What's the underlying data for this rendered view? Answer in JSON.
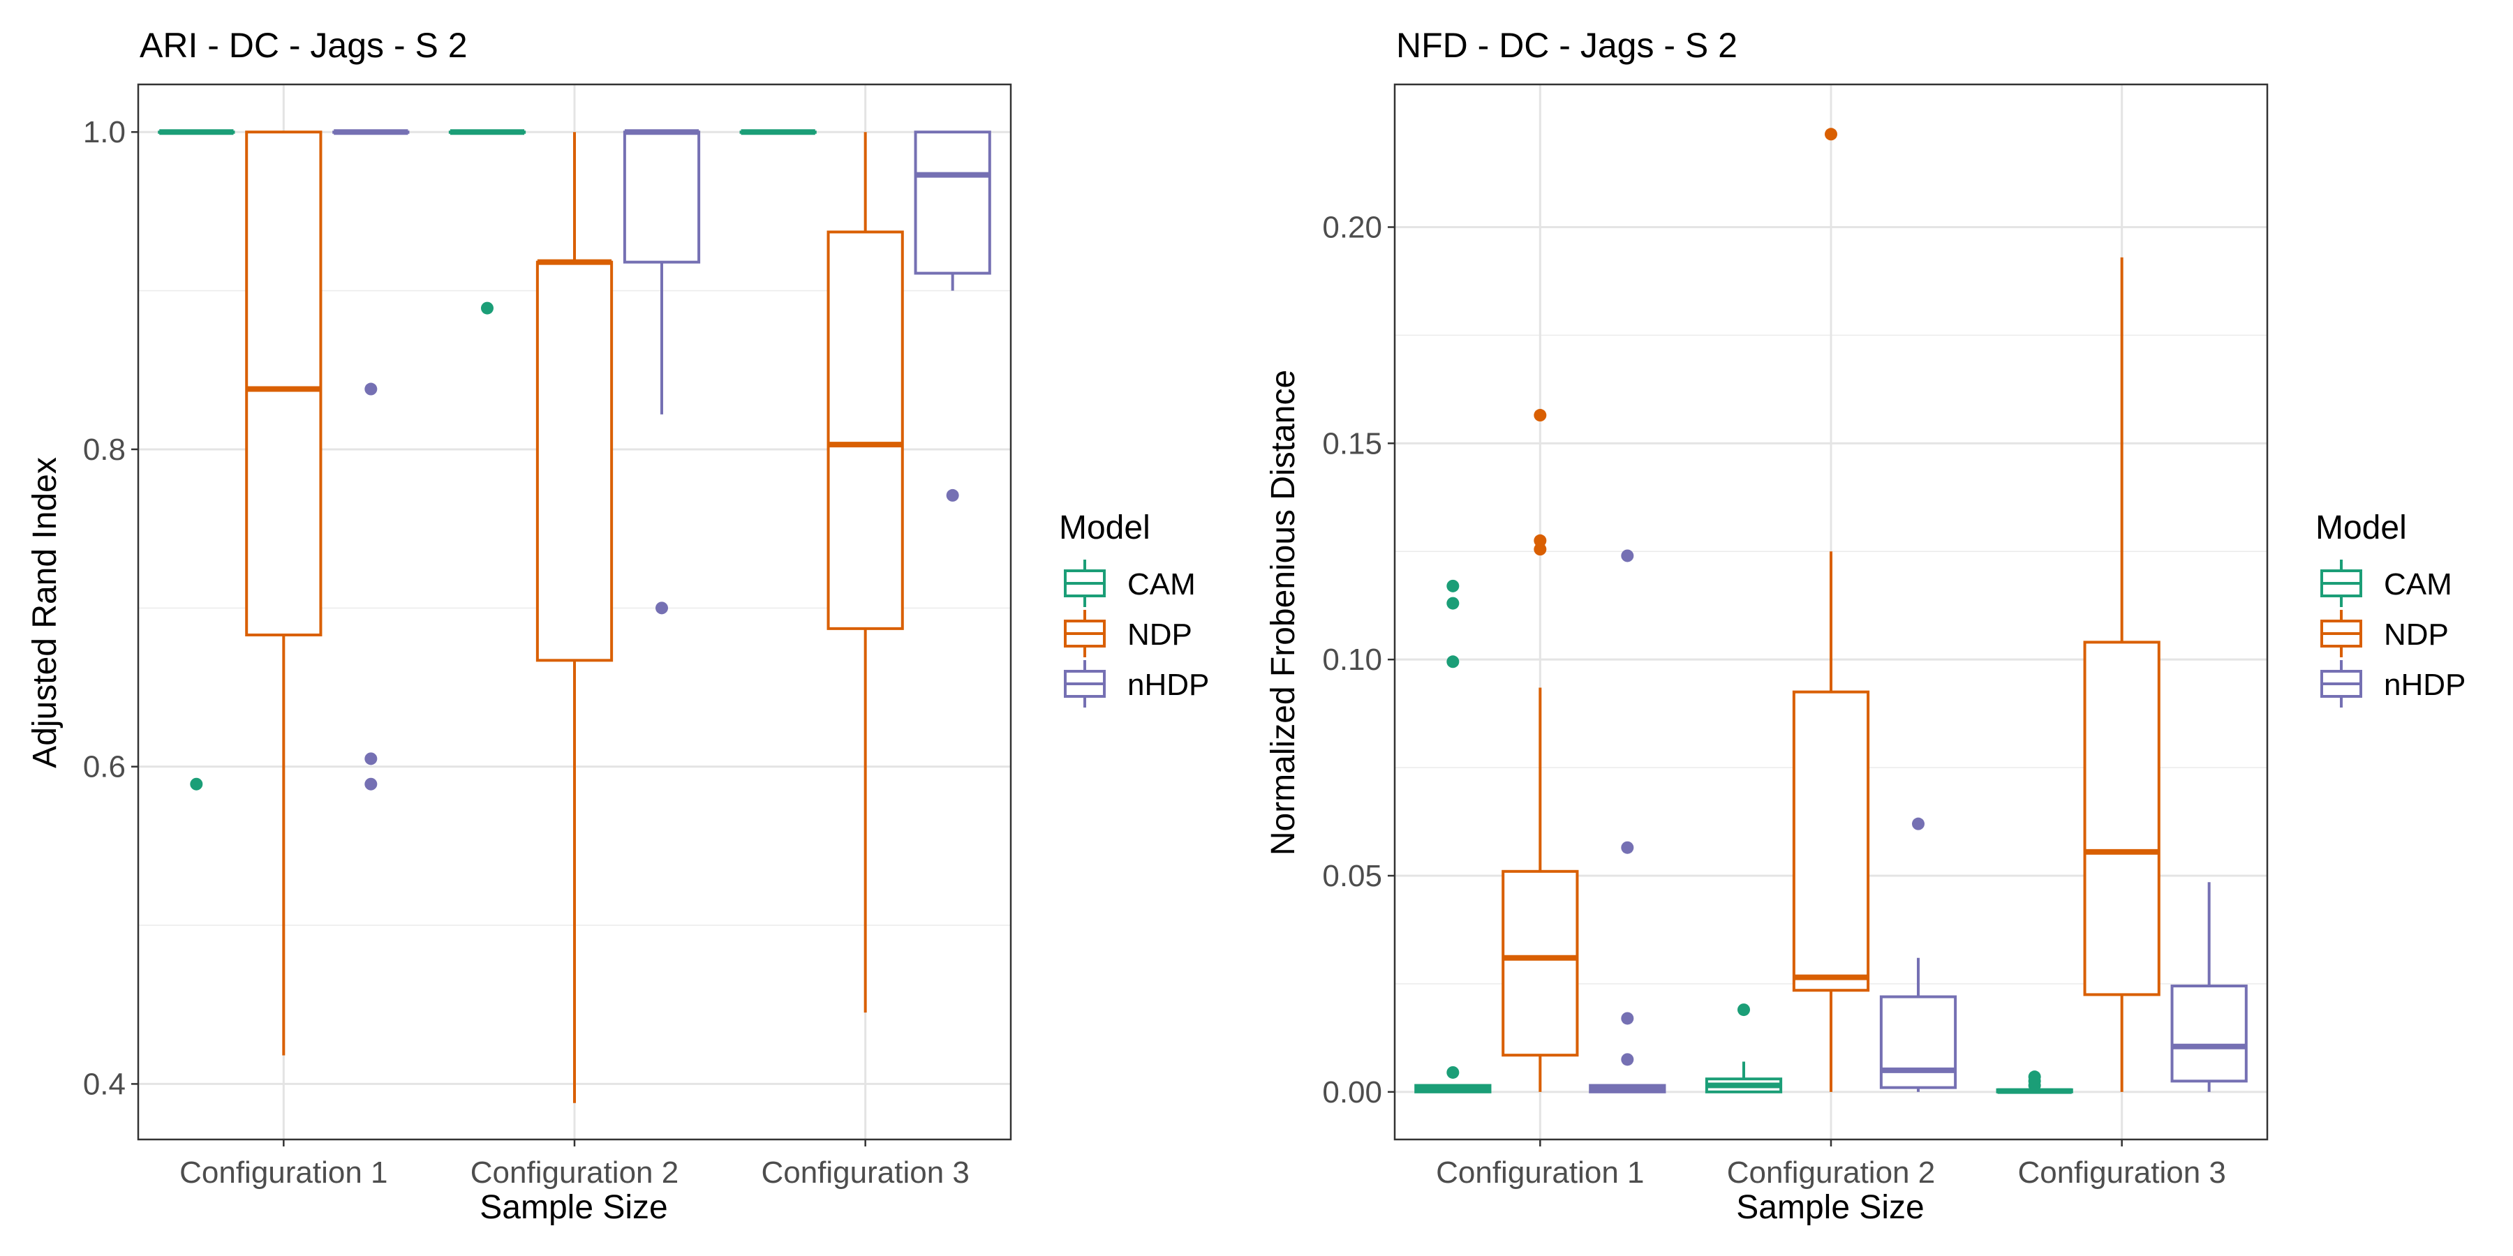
{
  "chart_data": [
    {
      "type": "boxplot",
      "title": "ARI - DC - Jags - S 2",
      "xlabel": "Sample Size",
      "ylabel": "Adjusted Rand Index",
      "categories": [
        "Configuration 1",
        "Configuration 2",
        "Configuration 3"
      ],
      "ylim": [
        0.365,
        1.03
      ],
      "yticks": [
        0.4,
        0.6,
        0.8,
        1.0
      ],
      "ytick_labels": [
        "0.4",
        "0.6",
        "0.8",
        "1.0"
      ],
      "grid": true,
      "legend": {
        "title": "Model",
        "position": "right",
        "entries": [
          "CAM",
          "NDP",
          "nHDP"
        ]
      },
      "series": [
        {
          "name": "CAM",
          "color": "#1b9e77",
          "boxes": [
            {
              "q1": 1.0,
              "median": 1.0,
              "q3": 1.0,
              "whisker_low": 1.0,
              "whisker_high": 1.0,
              "outliers": [
                0.589
              ]
            },
            {
              "q1": 1.0,
              "median": 1.0,
              "q3": 1.0,
              "whisker_low": 1.0,
              "whisker_high": 1.0,
              "outliers": [
                0.889
              ]
            },
            {
              "q1": 1.0,
              "median": 1.0,
              "q3": 1.0,
              "whisker_low": 1.0,
              "whisker_high": 1.0,
              "outliers": []
            }
          ]
        },
        {
          "name": "NDP",
          "color": "#d95f02",
          "boxes": [
            {
              "q1": 0.683,
              "median": 0.838,
              "q3": 1.0,
              "whisker_low": 0.418,
              "whisker_high": 1.0,
              "outliers": []
            },
            {
              "q1": 0.667,
              "median": 0.918,
              "q3": 0.918,
              "whisker_low": 0.388,
              "whisker_high": 1.0,
              "outliers": []
            },
            {
              "q1": 0.687,
              "median": 0.803,
              "q3": 0.937,
              "whisker_low": 0.445,
              "whisker_high": 1.0,
              "outliers": []
            }
          ]
        },
        {
          "name": "nHDP",
          "color": "#7570b3",
          "boxes": [
            {
              "q1": 1.0,
              "median": 1.0,
              "q3": 1.0,
              "whisker_low": 1.0,
              "whisker_high": 1.0,
              "outliers": [
                0.838,
                0.605,
                0.589
              ]
            },
            {
              "q1": 0.918,
              "median": 1.0,
              "q3": 1.0,
              "whisker_low": 0.822,
              "whisker_high": 1.0,
              "outliers": [
                0.7
              ]
            },
            {
              "q1": 0.911,
              "median": 0.973,
              "q3": 1.0,
              "whisker_low": 0.9,
              "whisker_high": 1.0,
              "outliers": [
                0.771
              ]
            }
          ]
        }
      ]
    },
    {
      "type": "boxplot",
      "title": "NFD - DC - Jags - S 2",
      "xlabel": "Sample Size",
      "ylabel": "Normalized Frobenious Distance",
      "categories": [
        "Configuration 1",
        "Configuration 2",
        "Configuration 3"
      ],
      "ylim": [
        -0.011,
        0.233
      ],
      "yticks": [
        0.0,
        0.05,
        0.1,
        0.15,
        0.2
      ],
      "ytick_labels": [
        "0.00",
        "0.05",
        "0.10",
        "0.15",
        "0.20"
      ],
      "grid": true,
      "legend": {
        "title": "Model",
        "position": "right",
        "entries": [
          "CAM",
          "NDP",
          "nHDP"
        ]
      },
      "series": [
        {
          "name": "CAM",
          "color": "#1b9e77",
          "boxes": [
            {
              "q1": 0.0,
              "median": 0.0008,
              "q3": 0.0015,
              "whisker_low": 0.0,
              "whisker_high": 0.0015,
              "outliers": [
                0.117,
                0.113,
                0.0995,
                0.0045
              ]
            },
            {
              "q1": 0.0,
              "median": 0.0015,
              "q3": 0.003,
              "whisker_low": 0.0,
              "whisker_high": 0.007,
              "outliers": [
                0.019
              ]
            },
            {
              "q1": 0.0,
              "median": 0.0002,
              "q3": 0.0005,
              "whisker_low": 0.0,
              "whisker_high": 0.0005,
              "outliers": [
                0.0035,
                0.0025,
                0.0015
              ]
            }
          ]
        },
        {
          "name": "NDP",
          "color": "#d95f02",
          "boxes": [
            {
              "q1": 0.0085,
              "median": 0.031,
              "q3": 0.051,
              "whisker_low": 0.0,
              "whisker_high": 0.0935,
              "outliers": [
                0.1565,
                0.1275,
                0.1255
              ]
            },
            {
              "q1": 0.0235,
              "median": 0.0265,
              "q3": 0.0925,
              "whisker_low": 0.0,
              "whisker_high": 0.125,
              "outliers": [
                0.2215
              ]
            },
            {
              "q1": 0.0225,
              "median": 0.0555,
              "q3": 0.104,
              "whisker_low": 0.0,
              "whisker_high": 0.193,
              "outliers": []
            }
          ]
        },
        {
          "name": "nHDP",
          "color": "#7570b3",
          "boxes": [
            {
              "q1": 0.0,
              "median": 0.0008,
              "q3": 0.0015,
              "whisker_low": 0.0,
              "whisker_high": 0.0015,
              "outliers": [
                0.124,
                0.0565,
                0.017,
                0.0075
              ]
            },
            {
              "q1": 0.001,
              "median": 0.005,
              "q3": 0.022,
              "whisker_low": 0.0,
              "whisker_high": 0.031,
              "outliers": [
                0.062
              ]
            },
            {
              "q1": 0.0025,
              "median": 0.0105,
              "q3": 0.0245,
              "whisker_low": 0.0,
              "whisker_high": 0.0485,
              "outliers": []
            }
          ]
        }
      ]
    }
  ]
}
